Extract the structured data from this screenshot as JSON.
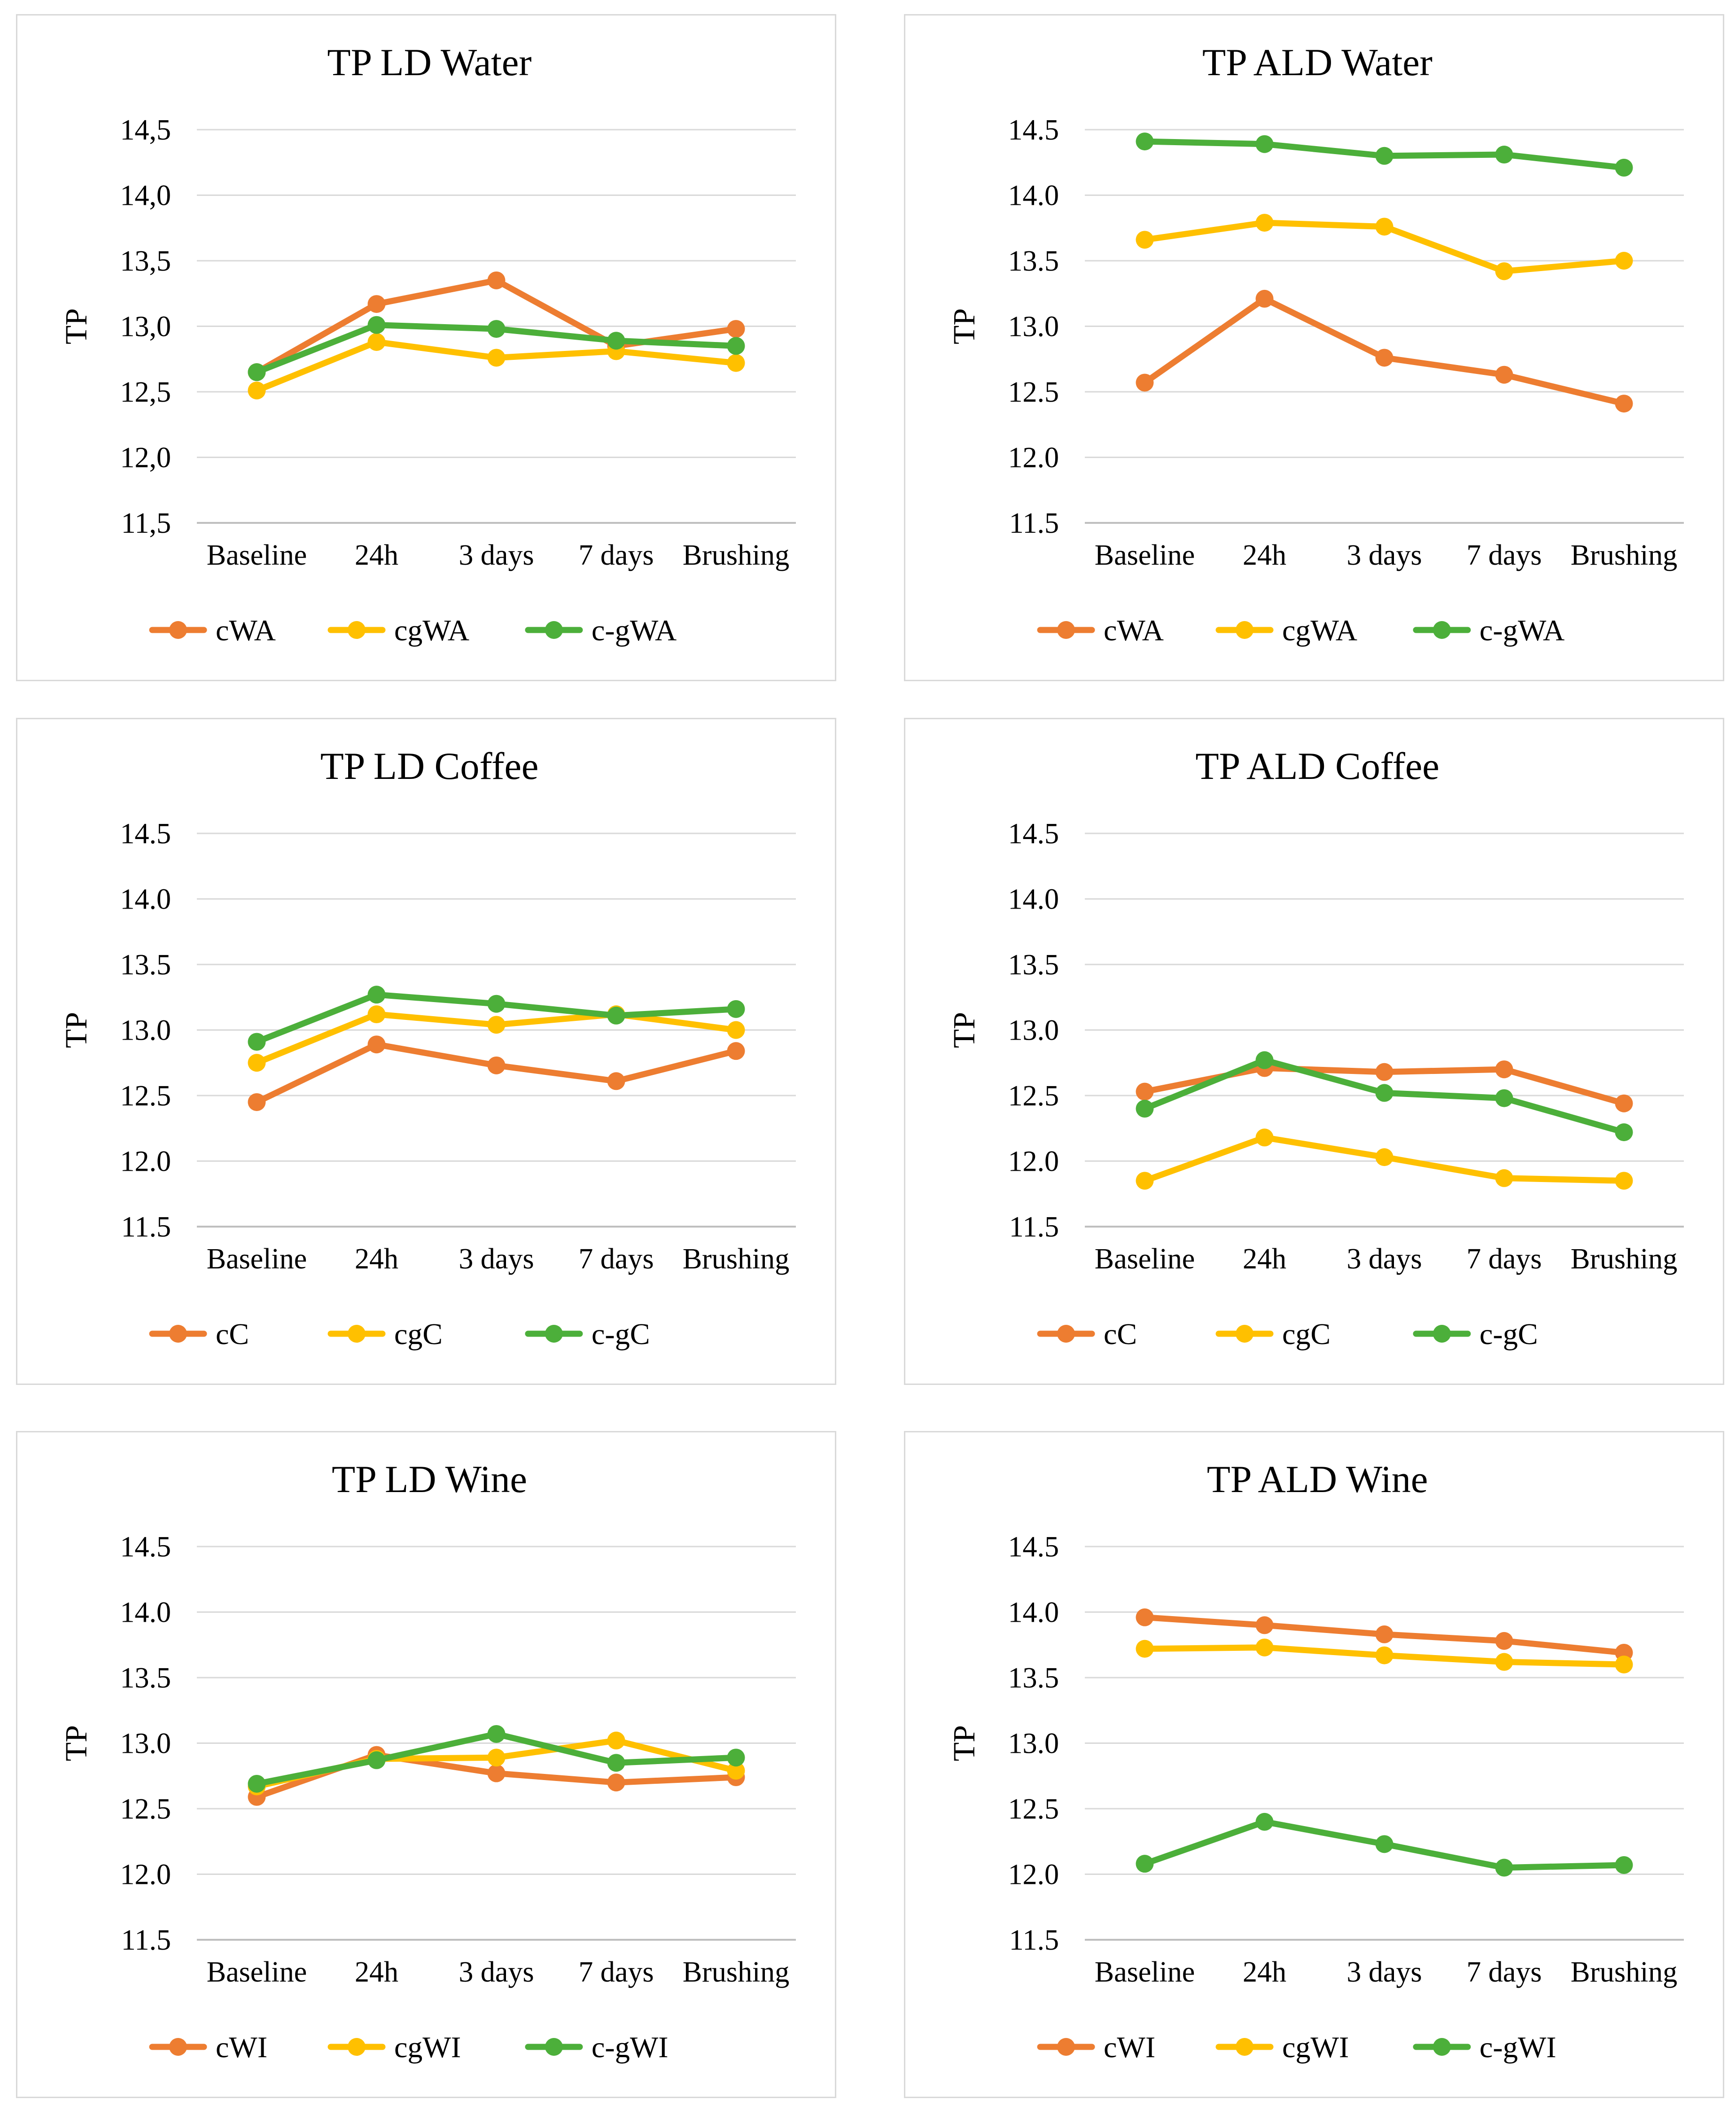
{
  "colors": {
    "orange": "#ed7d31",
    "yellow": "#ffc000",
    "green": "#4caf3a",
    "grid": "#d9d9d9",
    "axis": "#bfbfbf"
  },
  "chart_data": [
    {
      "type": "line",
      "title": "TP LD Water",
      "xlabel": "",
      "ylabel": "TP",
      "categories": [
        "Baseline",
        "24h",
        "3 days",
        "7 days",
        "Brushing"
      ],
      "yticks": [
        "11,5",
        "12,0",
        "12,5",
        "13,0",
        "13,5",
        "14,0",
        "14,5"
      ],
      "ylim": [
        11.5,
        14.5
      ],
      "grid": true,
      "legend_position": "bottom",
      "series": [
        {
          "name": "cWA",
          "color": "orange",
          "values": [
            12.65,
            13.17,
            13.35,
            12.85,
            12.98
          ]
        },
        {
          "name": "cgWA",
          "color": "yellow",
          "values": [
            12.51,
            12.88,
            12.76,
            12.81,
            12.72
          ]
        },
        {
          "name": "c-gWA",
          "color": "green",
          "values": [
            12.65,
            13.01,
            12.98,
            12.89,
            12.85
          ]
        }
      ]
    },
    {
      "type": "line",
      "title": "TP ALD Water",
      "xlabel": "",
      "ylabel": "TP",
      "categories": [
        "Baseline",
        "24h",
        "3 days",
        "7 days",
        "Brushing"
      ],
      "yticks": [
        "11.5",
        "12.0",
        "12.5",
        "13.0",
        "13.5",
        "14.0",
        "14.5"
      ],
      "ylim": [
        11.5,
        14.5
      ],
      "grid": true,
      "legend_position": "bottom",
      "series": [
        {
          "name": "cWA",
          "color": "orange",
          "values": [
            12.57,
            13.21,
            12.76,
            12.63,
            12.41
          ]
        },
        {
          "name": "cgWA",
          "color": "yellow",
          "values": [
            13.66,
            13.79,
            13.76,
            13.42,
            13.5
          ]
        },
        {
          "name": "c-gWA",
          "color": "green",
          "values": [
            14.41,
            14.39,
            14.3,
            14.31,
            14.21
          ]
        }
      ]
    },
    {
      "type": "line",
      "title": "TP LD Coffee",
      "xlabel": "",
      "ylabel": "TP",
      "categories": [
        "Baseline",
        "24h",
        "3 days",
        "7 days",
        "Brushing"
      ],
      "yticks": [
        "11.5",
        "12.0",
        "12.5",
        "13.0",
        "13.5",
        "14.0",
        "14.5"
      ],
      "ylim": [
        11.5,
        14.5
      ],
      "grid": true,
      "legend_position": "bottom",
      "series": [
        {
          "name": "cC",
          "color": "orange",
          "values": [
            12.45,
            12.89,
            12.73,
            12.61,
            12.84
          ]
        },
        {
          "name": "cgC",
          "color": "yellow",
          "values": [
            12.75,
            13.12,
            13.04,
            13.12,
            13.0
          ]
        },
        {
          "name": "c-gC",
          "color": "green",
          "values": [
            12.91,
            13.27,
            13.2,
            13.11,
            13.16
          ]
        }
      ]
    },
    {
      "type": "line",
      "title": "TP ALD Coffee",
      "xlabel": "",
      "ylabel": "TP",
      "categories": [
        "Baseline",
        "24h",
        "3 days",
        "7 days",
        "Brushing"
      ],
      "yticks": [
        "11.5",
        "12.0",
        "12.5",
        "13.0",
        "13.5",
        "14.0",
        "14.5"
      ],
      "ylim": [
        11.5,
        14.5
      ],
      "grid": true,
      "legend_position": "bottom",
      "series": [
        {
          "name": "cC",
          "color": "orange",
          "values": [
            12.53,
            12.71,
            12.68,
            12.7,
            12.44
          ]
        },
        {
          "name": "cgC",
          "color": "yellow",
          "values": [
            11.85,
            12.18,
            12.03,
            11.87,
            11.85
          ]
        },
        {
          "name": "c-gC",
          "color": "green",
          "values": [
            12.4,
            12.77,
            12.52,
            12.48,
            12.22
          ]
        }
      ]
    },
    {
      "type": "line",
      "title": "TP LD Wine",
      "xlabel": "",
      "ylabel": "TP",
      "categories": [
        "Baseline",
        "24h",
        "3 days",
        "7 days",
        "Brushing"
      ],
      "yticks": [
        "11.5",
        "12.0",
        "12.5",
        "13.0",
        "13.5",
        "14.0",
        "14.5"
      ],
      "ylim": [
        11.5,
        14.5
      ],
      "grid": true,
      "legend_position": "bottom",
      "series": [
        {
          "name": "cWI",
          "color": "orange",
          "values": [
            12.59,
            12.91,
            12.77,
            12.7,
            12.74
          ]
        },
        {
          "name": "cgWI",
          "color": "yellow",
          "values": [
            12.67,
            12.88,
            12.89,
            13.02,
            12.79
          ]
        },
        {
          "name": "c-gWI",
          "color": "green",
          "values": [
            12.69,
            12.87,
            13.07,
            12.85,
            12.89
          ]
        }
      ]
    },
    {
      "type": "line",
      "title": "TP ALD Wine",
      "xlabel": "",
      "ylabel": "TP",
      "categories": [
        "Baseline",
        "24h",
        "3 days",
        "7 days",
        "Brushing"
      ],
      "yticks": [
        "11.5",
        "12.0",
        "12.5",
        "13.0",
        "13.5",
        "14.0",
        "14.5"
      ],
      "ylim": [
        11.5,
        14.5
      ],
      "grid": true,
      "legend_position": "bottom",
      "series": [
        {
          "name": "cWI",
          "color": "orange",
          "values": [
            13.96,
            13.9,
            13.83,
            13.78,
            13.69
          ]
        },
        {
          "name": "cgWI",
          "color": "yellow",
          "values": [
            13.72,
            13.73,
            13.67,
            13.62,
            13.6
          ]
        },
        {
          "name": "c-gWI",
          "color": "green",
          "values": [
            12.08,
            12.4,
            12.23,
            12.05,
            12.07
          ]
        }
      ]
    }
  ]
}
